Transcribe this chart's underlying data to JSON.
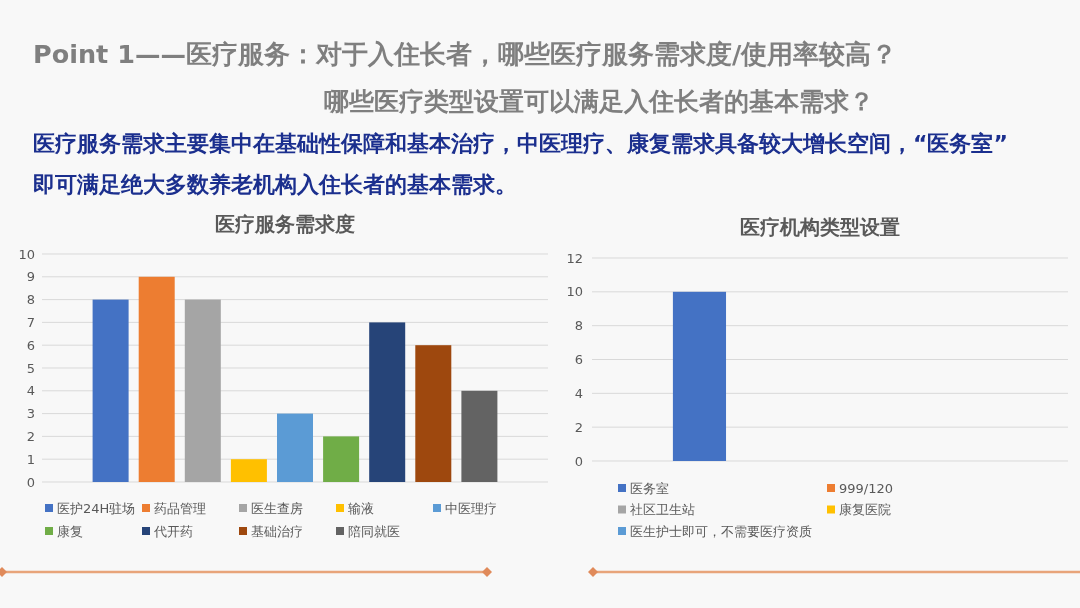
{
  "chart_data": [
    {
      "type": "other",
      "title": "Point 1——医疗服务：对于入住长者，哪些医疗服务需求度/使用率较高？",
      "subtitle": "哪些医疗类型设置可以满足入住长者的基本需求？",
      "annotations": [
        "医疗服务需求主要集中在基础性保障和基本治疗，中医理疗、康复需求具备较大增长空间，“医务室”即可满足绝大多数养老机构入住长者的基本需求。"
      ]
    },
    {
      "type": "bar",
      "title": "医疗服务需求度",
      "categories": [
        null
      ],
      "series": [
        {
          "name": "医护24H驻场",
          "color": "#4472c4",
          "values": [
            8
          ]
        },
        {
          "name": "药品管理",
          "color": "#ed7d31",
          "values": [
            9
          ]
        },
        {
          "name": "医生查房",
          "color": "#a5a5a5",
          "values": [
            8
          ]
        },
        {
          "name": "输液",
          "color": "#ffc000",
          "values": [
            1
          ]
        },
        {
          "name": "中医理疗",
          "color": "#5b9bd5",
          "values": [
            3
          ]
        },
        {
          "name": "康复",
          "color": "#70ad47",
          "values": [
            2
          ]
        },
        {
          "name": "代开药",
          "color": "#264478",
          "values": [
            7
          ]
        },
        {
          "name": "基础治疗",
          "color": "#9e480e",
          "values": [
            6
          ]
        },
        {
          "name": "陪同就医",
          "color": "#636363",
          "values": [
            4
          ]
        }
      ],
      "ylim": [
        0,
        10
      ],
      "yticks": [
        0,
        1,
        2,
        3,
        4,
        5,
        6,
        7,
        8,
        9,
        10
      ],
      "grid": "y",
      "legend": "bottom"
    },
    {
      "type": "bar",
      "title": "医疗机构类型设置",
      "categories": [
        null
      ],
      "series": [
        {
          "name": "医务室",
          "color": "#4472c4",
          "values": [
            10
          ]
        },
        {
          "name": "999/120",
          "color": "#ed7d31",
          "values": [
            0
          ]
        },
        {
          "name": "社区卫生站",
          "color": "#a5a5a5",
          "values": [
            0
          ]
        },
        {
          "name": "康复医院",
          "color": "#ffc000",
          "values": [
            0
          ]
        },
        {
          "name": "医生护士即可，不需要医疗资质",
          "color": "#5b9bd5",
          "values": [
            0
          ]
        }
      ],
      "ylim": [
        0,
        12
      ],
      "yticks": [
        0,
        2,
        4,
        6,
        8,
        10,
        12
      ],
      "grid": "y",
      "legend": "bottom"
    }
  ]
}
